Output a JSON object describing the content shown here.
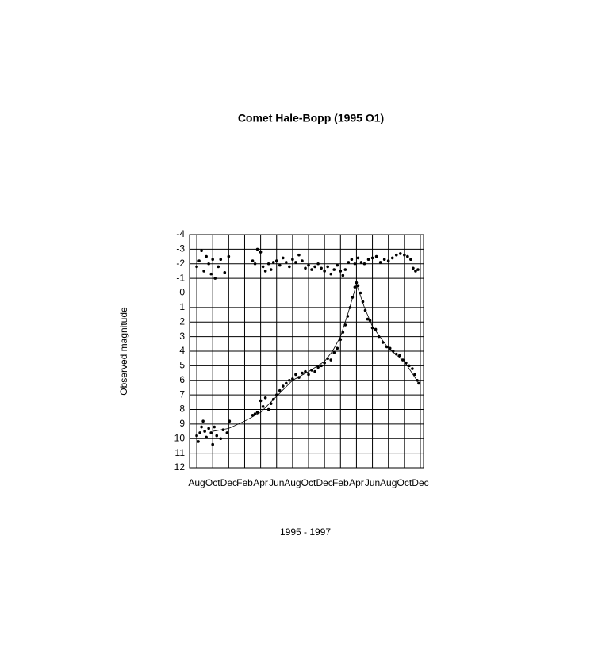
{
  "chart_data": {
    "type": "scatter",
    "title": "Comet Hale-Bopp (1995 O1)",
    "xlabel": "1995 - 1997",
    "ylabel": "Observed magnitude",
    "xlim": [
      -0.9,
      28.4
    ],
    "ylim": [
      -4,
      12
    ],
    "y_inverted": true,
    "grid": true,
    "xticks": [
      {
        "value": 0,
        "label": "Aug"
      },
      {
        "value": 2,
        "label": "Oct"
      },
      {
        "value": 4,
        "label": "Dec"
      },
      {
        "value": 6,
        "label": "Feb"
      },
      {
        "value": 8,
        "label": "Apr"
      },
      {
        "value": 10,
        "label": "Jun"
      },
      {
        "value": 12,
        "label": "Aug"
      },
      {
        "value": 14,
        "label": "Oct"
      },
      {
        "value": 16,
        "label": "Dec"
      },
      {
        "value": 18,
        "label": "Feb"
      },
      {
        "value": 20,
        "label": "Apr"
      },
      {
        "value": 22,
        "label": "Jun"
      },
      {
        "value": 24,
        "label": "Aug"
      },
      {
        "value": 26,
        "label": "Oct"
      },
      {
        "value": 28,
        "label": "Dec"
      }
    ],
    "yticks": [
      -4,
      -3,
      -2,
      -1,
      0,
      1,
      2,
      3,
      4,
      5,
      6,
      7,
      8,
      9,
      10,
      11,
      12
    ],
    "series": [
      {
        "color": "#000000",
        "style": "dots",
        "x": [
          0,
          0.2,
          0.4,
          0.6,
          0.8,
          1,
          1.2,
          1.5,
          1.8,
          2,
          2.2,
          2.5,
          3,
          3.3,
          3.8,
          4.1,
          7,
          7.3,
          7.6,
          8,
          8.3,
          8.6,
          9,
          9.3,
          9.6,
          10,
          10.4,
          10.8,
          11.2,
          11.6,
          12,
          12.4,
          12.8,
          13.2,
          13.6,
          14,
          14.4,
          14.8,
          15.2,
          15.6,
          16,
          16.4,
          16.8,
          17.2,
          17.6,
          18,
          18.3,
          18.6,
          18.9,
          19.2,
          19.5,
          19.8,
          20,
          20.2,
          20.5,
          20.8,
          21.1,
          21.4,
          21.7,
          22,
          22.4,
          22.8,
          23.3,
          23.8,
          24.2,
          24.6,
          25,
          25.4,
          25.8,
          26.2,
          26.6,
          27,
          27.3,
          27.6,
          27.8
        ],
        "values": [
          9.8,
          10.2,
          9.6,
          9.2,
          8.8,
          9.5,
          9.9,
          9.3,
          9.6,
          10.4,
          9.2,
          9.8,
          10.0,
          9.4,
          9.6,
          8.8,
          8.4,
          8.3,
          8.2,
          7.4,
          7.8,
          7.2,
          8.0,
          7.6,
          7.3,
          7.0,
          6.7,
          6.4,
          6.2,
          6.0,
          5.9,
          5.6,
          5.8,
          5.5,
          5.4,
          5.6,
          5.3,
          5.4,
          5.1,
          5.0,
          4.8,
          4.5,
          4.6,
          4.1,
          3.8,
          3.2,
          2.7,
          2.2,
          1.6,
          1.0,
          0.3,
          -0.4,
          -0.7,
          -0.5,
          0.0,
          0.6,
          1.2,
          1.8,
          1.9,
          2.4,
          2.5,
          3.0,
          3.4,
          3.7,
          3.8,
          4.0,
          4.2,
          4.3,
          4.6,
          4.8,
          5.0,
          5.2,
          5.6,
          6.0,
          6.2
        ]
      },
      {
        "color": "#000000",
        "style": "dots",
        "x": [
          0,
          0.3,
          0.6,
          0.9,
          1.2,
          1.5,
          1.8,
          2,
          2.3,
          2.7,
          3,
          3.5,
          4,
          7,
          7.3,
          7.6,
          8,
          8.3,
          8.6,
          9,
          9.3,
          9.6,
          10,
          10.4,
          10.8,
          11.2,
          11.6,
          12,
          12.4,
          12.8,
          13.2,
          13.6,
          14,
          14.4,
          14.8,
          15.2,
          15.6,
          16,
          16.4,
          16.8,
          17.2,
          17.6,
          18,
          18.3,
          18.6,
          19,
          19.4,
          19.8,
          20.2,
          20.6,
          21,
          21.5,
          22,
          22.5,
          23,
          23.5,
          24,
          24.5,
          25,
          25.5,
          26,
          26.4,
          26.8,
          27.1,
          27.4,
          27.7
        ],
        "values": [
          -1.8,
          -2.2,
          -2.9,
          -1.5,
          -2.5,
          -2.0,
          -1.3,
          -2.3,
          -1.0,
          -1.8,
          -2.3,
          -1.4,
          -2.5,
          -2.2,
          -2.0,
          -3.0,
          -2.8,
          -1.8,
          -1.5,
          -2.0,
          -1.6,
          -2.1,
          -2.2,
          -1.9,
          -2.4,
          -2.1,
          -1.8,
          -2.3,
          -2.1,
          -2.6,
          -2.2,
          -1.7,
          -1.9,
          -1.6,
          -1.8,
          -2.0,
          -1.7,
          -1.5,
          -1.8,
          -1.3,
          -1.6,
          -1.9,
          -1.5,
          -1.2,
          -1.6,
          -2.1,
          -2.3,
          -2.0,
          -2.4,
          -2.1,
          -2.0,
          -2.3,
          -2.4,
          -2.5,
          -2.1,
          -2.3,
          -2.2,
          -2.4,
          -2.6,
          -2.7,
          -2.6,
          -2.5,
          -2.3,
          -1.7,
          -1.5,
          -1.6
        ]
      },
      {
        "color": "#000000",
        "style": "line",
        "x": [
          2,
          4,
          6,
          8,
          10,
          12,
          14,
          16,
          17,
          18,
          19,
          20,
          21,
          22,
          24,
          26,
          27.8
        ],
        "values": [
          9.5,
          9.3,
          8.8,
          8.2,
          7.1,
          6.0,
          5.4,
          4.7,
          4.0,
          3.0,
          1.3,
          -0.6,
          1.0,
          2.3,
          3.8,
          4.7,
          6.2
        ]
      }
    ]
  }
}
